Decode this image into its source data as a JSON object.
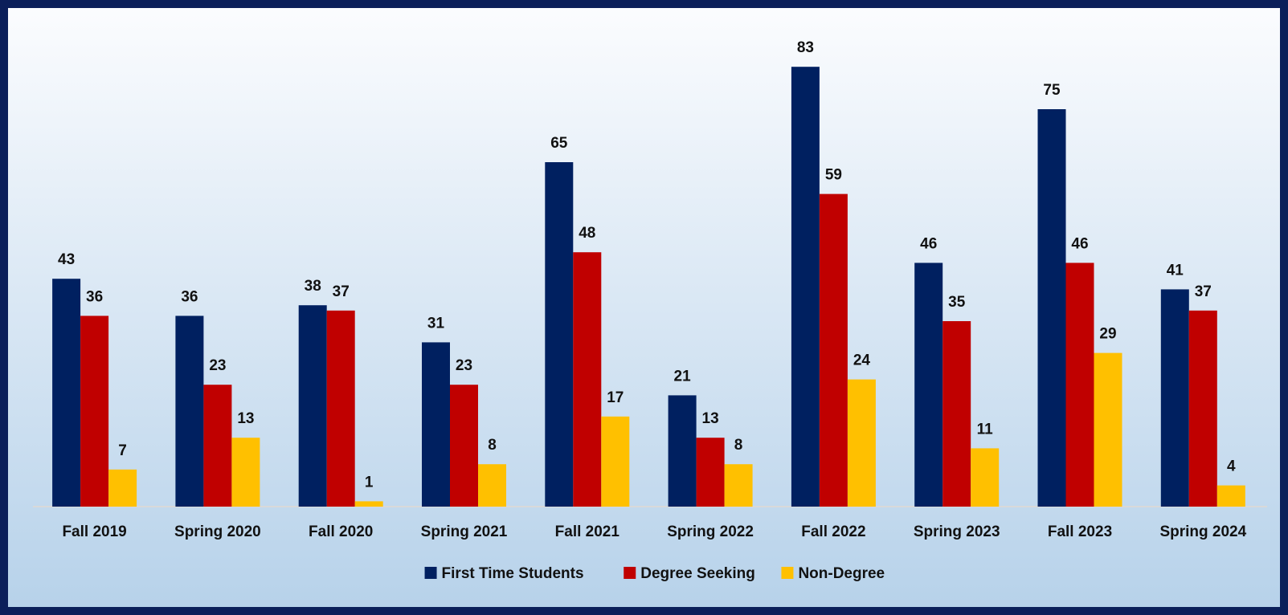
{
  "chart_data": {
    "type": "bar",
    "categories": [
      "Fall 2019",
      "Spring 2020",
      "Fall 2020",
      "Spring 2021",
      "Fall 2021",
      "Spring 2022",
      "Fall 2022",
      "Spring 2023",
      "Fall 2023",
      "Spring 2024"
    ],
    "series": [
      {
        "name": "First Time Students",
        "color": "#002060",
        "values": [
          43,
          36,
          38,
          31,
          65,
          21,
          83,
          46,
          75,
          41
        ]
      },
      {
        "name": "Degree Seeking",
        "color": "#C00000",
        "values": [
          36,
          23,
          37,
          23,
          48,
          13,
          59,
          35,
          46,
          37
        ]
      },
      {
        "name": "Non-Degree",
        "color": "#FFC000",
        "values": [
          7,
          13,
          1,
          8,
          17,
          8,
          24,
          11,
          29,
          4
        ]
      }
    ],
    "legend": "bottom"
  }
}
